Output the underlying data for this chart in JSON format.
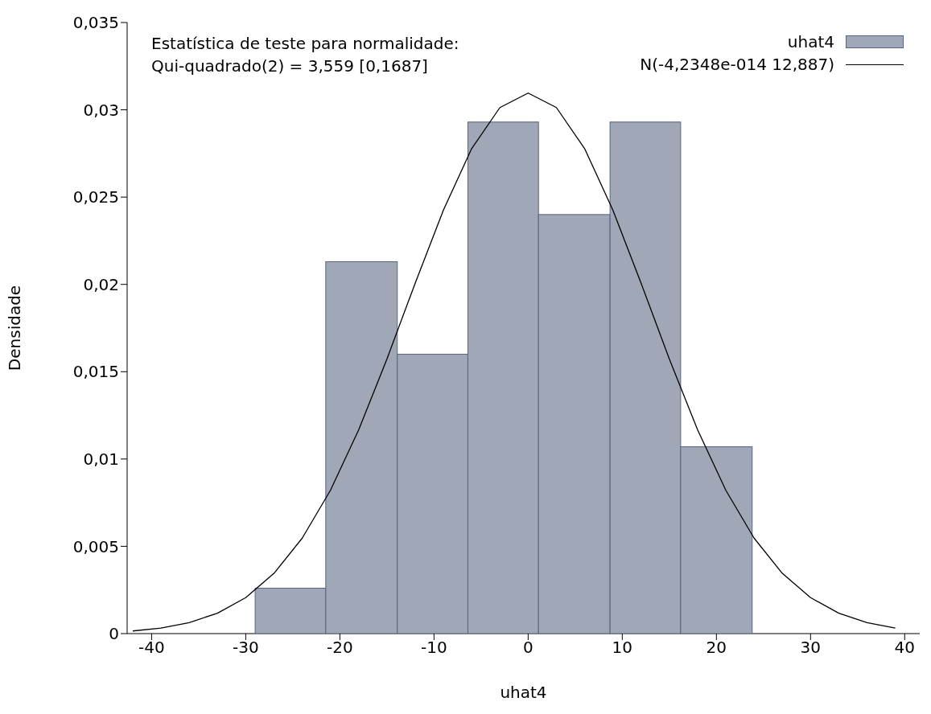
{
  "chart_data": {
    "type": "histogram",
    "xlabel": "uhat4",
    "ylabel": "Densidade",
    "annotations": [
      "Estatística de teste para normalidade:",
      "Qui-quadrado(2) = 3,559 [0,1687]"
    ],
    "bins": [
      -29.0,
      -21.5,
      -13.9,
      -6.4,
      1.1,
      8.7,
      16.2,
      23.8
    ],
    "series": [
      {
        "name": "uhat4",
        "color": "#a0a7b6",
        "values": [
          0.0026,
          0.0213,
          0.016,
          0.0293,
          0.024,
          0.0293,
          0.0107
        ]
      },
      {
        "type": "line",
        "name": "N(-4,2348e-014 12,887)",
        "color": "#000000",
        "x": [
          -42,
          -39,
          -36,
          -33,
          -30,
          -27,
          -24,
          -21,
          -18,
          -15,
          -12,
          -9,
          -6,
          -3,
          0,
          3,
          6,
          9,
          12,
          15,
          18,
          21,
          24,
          27,
          30,
          33,
          36,
          39
        ],
        "values": [
          0.00015,
          0.00032,
          0.00063,
          0.00117,
          0.00206,
          0.00345,
          0.00547,
          0.00821,
          0.01167,
          0.01573,
          0.02007,
          0.02426,
          0.02778,
          0.03013,
          0.03096,
          0.03013,
          0.02778,
          0.02426,
          0.02007,
          0.01573,
          0.01167,
          0.00821,
          0.00547,
          0.00345,
          0.00206,
          0.00117,
          0.00063,
          0.00032
        ]
      }
    ],
    "xlim": [
      -42.6,
      41.6
    ],
    "xticks": [
      -40,
      -30,
      -20,
      -10,
      0,
      10,
      20,
      30,
      40
    ],
    "ylim": [
      0,
      0.035
    ],
    "yticks": [
      0,
      {
        "value": 0.005,
        "label": "0,005"
      },
      {
        "value": 0.01,
        "label": "0,01"
      },
      {
        "value": 0.015,
        "label": "0,015"
      },
      {
        "value": 0.02,
        "label": "0,02"
      },
      {
        "value": 0.025,
        "label": "0,025"
      },
      {
        "value": 0.03,
        "label": "0,03"
      },
      {
        "value": 0.035,
        "label": "0,035"
      }
    ],
    "grid": false,
    "legend": "top right"
  }
}
